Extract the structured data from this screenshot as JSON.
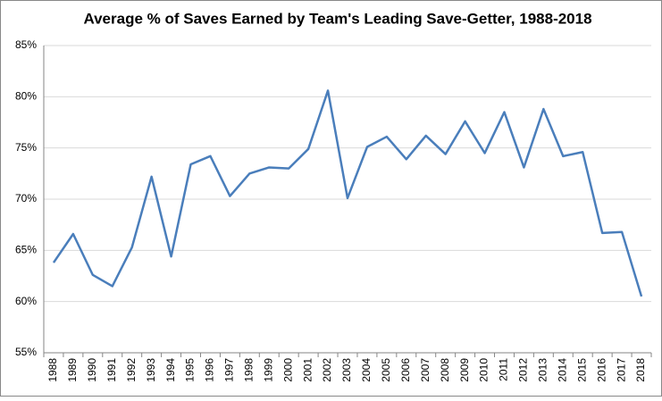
{
  "chart_data": {
    "type": "line",
    "title": "Average % of Saves Earned by Team's Leading Save-Getter, 1988-2018",
    "categories": [
      "1988",
      "1989",
      "1990",
      "1991",
      "1992",
      "1993",
      "1994",
      "1995",
      "1996",
      "1997",
      "1998",
      "1999",
      "2000",
      "2001",
      "2002",
      "2003",
      "2004",
      "2005",
      "2006",
      "2007",
      "2008",
      "2009",
      "2010",
      "2011",
      "2012",
      "2013",
      "2014",
      "2015",
      "2016",
      "2017",
      "2018"
    ],
    "values": [
      63.8,
      66.6,
      62.6,
      61.5,
      65.3,
      72.2,
      64.4,
      73.4,
      74.2,
      70.3,
      72.5,
      73.1,
      73.0,
      74.9,
      80.6,
      70.1,
      75.1,
      76.1,
      73.9,
      76.2,
      74.4,
      77.6,
      74.5,
      78.5,
      73.1,
      78.8,
      74.2,
      74.6,
      66.7,
      66.8,
      60.5
    ],
    "color": "#4a7ebb",
    "ylim": [
      55,
      85
    ],
    "yticks": [
      {
        "value": 55,
        "label": "55%"
      },
      {
        "value": 60,
        "label": "60%"
      },
      {
        "value": 65,
        "label": "65%"
      },
      {
        "value": 70,
        "label": "70%"
      },
      {
        "value": 75,
        "label": "75%"
      },
      {
        "value": 80,
        "label": "80%"
      },
      {
        "value": 85,
        "label": "85%"
      }
    ],
    "grid": true
  }
}
